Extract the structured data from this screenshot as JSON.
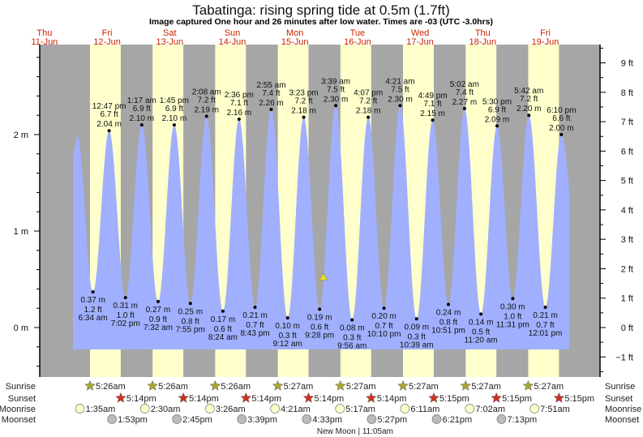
{
  "chart_data": {
    "type": "area",
    "title": "Tabatinga: rising  spring tide at 0.5m (1.7ft)",
    "subtitle": "Image captured One hour and 26 minutes after low water. Times are -03 (UTC -3.0hrs)",
    "left_axis": {
      "unit": "m",
      "ticks": [
        "2 m",
        "1 m",
        "0 m"
      ],
      "tick_values": [
        2,
        1,
        0
      ],
      "range_m": [
        -0.5,
        2.9
      ]
    },
    "right_axis": {
      "unit": "ft",
      "ticks": [
        "9 ft",
        "8 ft",
        "7 ft",
        "6 ft",
        "5 ft",
        "4 ft",
        "3 ft",
        "2 ft",
        "1 ft",
        "0 ft",
        "−1 ft"
      ],
      "tick_values": [
        9,
        8,
        7,
        6,
        5,
        4,
        3,
        2,
        1,
        0,
        -1
      ]
    },
    "days": [
      {
        "dow": "Thu",
        "date": "11-Jun",
        "day": 11
      },
      {
        "dow": "Fri",
        "date": "12-Jun",
        "day": 12
      },
      {
        "dow": "Sat",
        "date": "13-Jun",
        "day": 13
      },
      {
        "dow": "Sun",
        "date": "14-Jun",
        "day": 14
      },
      {
        "dow": "Mon",
        "date": "15-Jun",
        "day": 15
      },
      {
        "dow": "Tue",
        "date": "16-Jun",
        "day": 16
      },
      {
        "dow": "Wed",
        "date": "17-Jun",
        "day": 17
      },
      {
        "dow": "Thu",
        "date": "18-Jun",
        "day": 18
      },
      {
        "dow": "Fri",
        "date": "19-Jun",
        "day": 19
      }
    ],
    "tides": [
      {
        "day": 12,
        "time": "6:34 am",
        "type": "low",
        "m": "0.37 m",
        "ft": "1.2 ft",
        "value": 0.37
      },
      {
        "day": 12,
        "time": "12:47 pm",
        "type": "high",
        "m": "2.04 m",
        "ft": "6.7 ft",
        "value": 2.04
      },
      {
        "day": 12,
        "time": "7:02 pm",
        "type": "low",
        "m": "0.31 m",
        "ft": "1.0 ft",
        "value": 0.31
      },
      {
        "day": 13,
        "time": "1:17 am",
        "type": "high",
        "m": "2.10 m",
        "ft": "6.9 ft",
        "value": 2.1
      },
      {
        "day": 13,
        "time": "7:32 am",
        "type": "low",
        "m": "0.27 m",
        "ft": "0.9 ft",
        "value": 0.27
      },
      {
        "day": 13,
        "time": "1:45 pm",
        "type": "high",
        "m": "2.10 m",
        "ft": "6.9 ft",
        "value": 2.1
      },
      {
        "day": 13,
        "time": "7:55 pm",
        "type": "low",
        "m": "0.25 m",
        "ft": "0.8 ft",
        "value": 0.25
      },
      {
        "day": 14,
        "time": "2:08 am",
        "type": "high",
        "m": "2.19 m",
        "ft": "7.2 ft",
        "value": 2.19
      },
      {
        "day": 14,
        "time": "8:24 am",
        "type": "low",
        "m": "0.17 m",
        "ft": "0.6 ft",
        "value": 0.17
      },
      {
        "day": 14,
        "time": "2:36 pm",
        "type": "high",
        "m": "2.16 m",
        "ft": "7.1 ft",
        "value": 2.16
      },
      {
        "day": 14,
        "time": "8:43 pm",
        "type": "low",
        "m": "0.21 m",
        "ft": "0.7 ft",
        "value": 0.21
      },
      {
        "day": 15,
        "time": "2:55 am",
        "type": "high",
        "m": "2.26 m",
        "ft": "7.4 ft",
        "value": 2.26
      },
      {
        "day": 15,
        "time": "9:12 am",
        "type": "low",
        "m": "0.10 m",
        "ft": "0.3 ft",
        "value": 0.1
      },
      {
        "day": 15,
        "time": "3:23 pm",
        "type": "high",
        "m": "2.18 m",
        "ft": "7.2 ft",
        "value": 2.18
      },
      {
        "day": 15,
        "time": "9:28 pm",
        "type": "low",
        "m": "0.19 m",
        "ft": "0.6 ft",
        "value": 0.19
      },
      {
        "day": 16,
        "time": "3:39 am",
        "type": "high",
        "m": "2.30 m",
        "ft": "7.5 ft",
        "value": 2.3
      },
      {
        "day": 16,
        "time": "9:56 am",
        "type": "low",
        "m": "0.08 m",
        "ft": "0.3 ft",
        "value": 0.08
      },
      {
        "day": 16,
        "time": "4:07 pm",
        "type": "high",
        "m": "2.18 m",
        "ft": "7.2 ft",
        "value": 2.18
      },
      {
        "day": 16,
        "time": "10:10 pm",
        "type": "low",
        "m": "0.20 m",
        "ft": "0.7 ft",
        "value": 0.2
      },
      {
        "day": 17,
        "time": "4:21 am",
        "type": "high",
        "m": "2.30 m",
        "ft": "7.5 ft",
        "value": 2.3
      },
      {
        "day": 17,
        "time": "10:39 am",
        "type": "low",
        "m": "0.09 m",
        "ft": "0.3 ft",
        "value": 0.09
      },
      {
        "day": 17,
        "time": "4:49 pm",
        "type": "high",
        "m": "2.15 m",
        "ft": "7.1 ft",
        "value": 2.15
      },
      {
        "day": 17,
        "time": "10:51 pm",
        "type": "low",
        "m": "0.24 m",
        "ft": "0.8 ft",
        "value": 0.24
      },
      {
        "day": 18,
        "time": "5:02 am",
        "type": "high",
        "m": "2.27 m",
        "ft": "7.4 ft",
        "value": 2.27
      },
      {
        "day": 18,
        "time": "11:20 am",
        "type": "low",
        "m": "0.14 m",
        "ft": "0.5 ft",
        "value": 0.14
      },
      {
        "day": 18,
        "time": "5:30 pm",
        "type": "high",
        "m": "2.09 m",
        "ft": "6.9 ft",
        "value": 2.09
      },
      {
        "day": 18,
        "time": "11:31 pm",
        "type": "low",
        "m": "0.30 m",
        "ft": "1.0 ft",
        "value": 0.3
      },
      {
        "day": 19,
        "time": "5:42 am",
        "type": "high",
        "m": "2.20 m",
        "ft": "7.2 ft",
        "value": 2.2
      },
      {
        "day": 19,
        "time": "12:01 pm",
        "type": "low",
        "m": "0.21 m",
        "ft": "0.7 ft",
        "value": 0.21
      },
      {
        "day": 19,
        "time": "6:10 pm",
        "type": "high",
        "m": "2.00 m",
        "ft": "6.6 ft",
        "value": 2.0
      }
    ],
    "current": {
      "value_m": 0.5,
      "day": 15,
      "time": "10:54 pm"
    },
    "rows": {
      "sunrise": "Sunrise",
      "sunset": "Sunset",
      "moonrise": "Moonrise",
      "moonset": "Moonset"
    },
    "sunrise": [
      {
        "day": 12,
        "time": "5:26am"
      },
      {
        "day": 13,
        "time": "5:26am"
      },
      {
        "day": 14,
        "time": "5:26am"
      },
      {
        "day": 15,
        "time": "5:27am"
      },
      {
        "day": 16,
        "time": "5:27am"
      },
      {
        "day": 17,
        "time": "5:27am"
      },
      {
        "day": 18,
        "time": "5:27am"
      },
      {
        "day": 19,
        "time": "5:27am"
      }
    ],
    "sunset": [
      {
        "day": 12,
        "time": "5:14pm"
      },
      {
        "day": 13,
        "time": "5:14pm"
      },
      {
        "day": 14,
        "time": "5:14pm"
      },
      {
        "day": 15,
        "time": "5:14pm"
      },
      {
        "day": 16,
        "time": "5:14pm"
      },
      {
        "day": 17,
        "time": "5:15pm"
      },
      {
        "day": 18,
        "time": "5:15pm"
      },
      {
        "day": 19,
        "time": "5:15pm"
      }
    ],
    "moonrise": [
      {
        "day": 12,
        "time": "1:35am"
      },
      {
        "day": 13,
        "time": "2:30am"
      },
      {
        "day": 14,
        "time": "3:26am"
      },
      {
        "day": 15,
        "time": "4:21am"
      },
      {
        "day": 16,
        "time": "5:17am"
      },
      {
        "day": 17,
        "time": "6:11am"
      },
      {
        "day": 18,
        "time": "7:02am"
      },
      {
        "day": 19,
        "time": "7:51am"
      }
    ],
    "moonset": [
      {
        "day": 12,
        "time": "1:53pm"
      },
      {
        "day": 13,
        "time": "2:45pm"
      },
      {
        "day": 14,
        "time": "3:39pm"
      },
      {
        "day": 15,
        "time": "4:33pm"
      },
      {
        "day": 16,
        "time": "5:27pm"
      },
      {
        "day": 17,
        "time": "6:21pm"
      },
      {
        "day": 18,
        "time": "7:13pm"
      }
    ],
    "moon_phase": {
      "day": 16,
      "time": "11:05am",
      "label": "New Moon | 11:05am"
    },
    "colors": {
      "night": "#a6a6a6",
      "day": "#ffffcc",
      "water": "#a0b0ff",
      "day_label": "#cc2200",
      "sunrise": "#a8a830",
      "sunset": "#d03020",
      "moonrise": "#ffffcc",
      "moonset": "#bbbbbb",
      "marker": "#e8e020"
    }
  }
}
